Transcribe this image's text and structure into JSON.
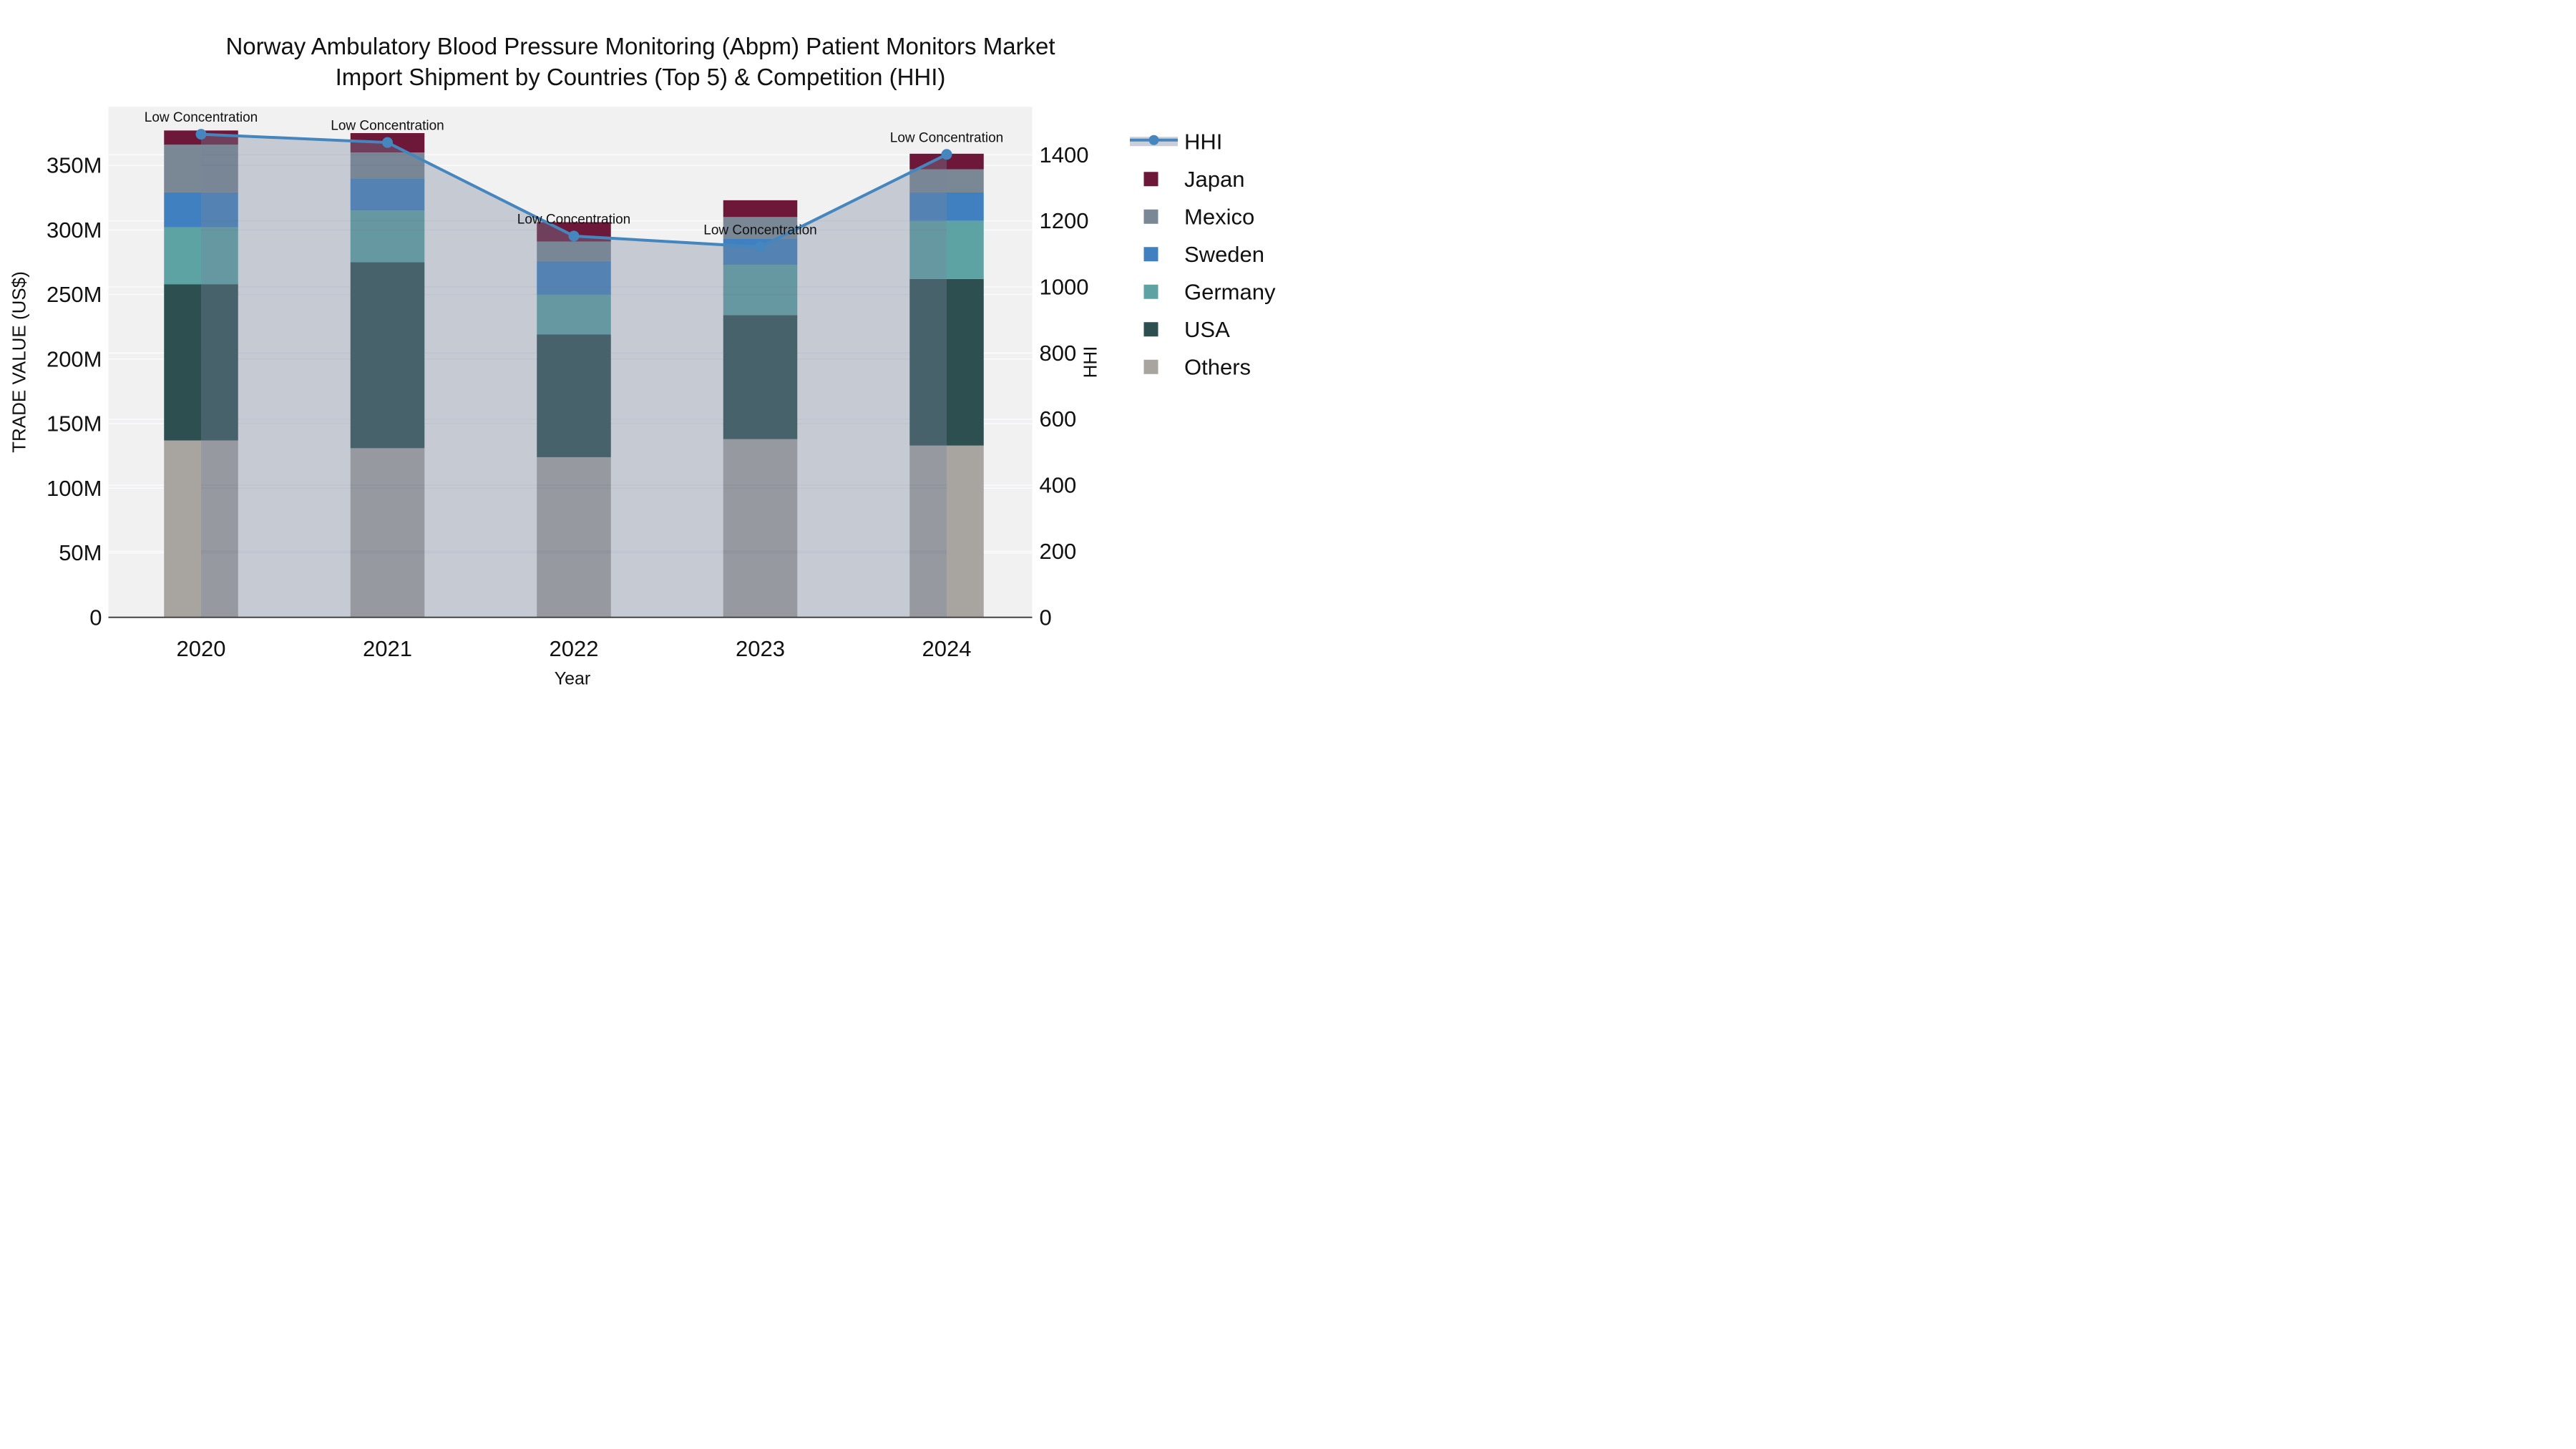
{
  "title": {
    "line1": "Norway Ambulatory Blood Pressure Monitoring (Abpm) Patient Monitors Market",
    "line2": "Import Shipment by Countries (Top 5) & Competition (HHI)"
  },
  "chart_data": {
    "type": "combo-stacked-bar-line",
    "x_axis_title": "Year",
    "y_left_axis_title": "TRADE VALUE (US$)",
    "y_right_axis_title": "HHI",
    "categories": [
      "2020",
      "2021",
      "2022",
      "2023",
      "2024"
    ],
    "bar_unit": "M US$",
    "stack_order_bottom_to_top": [
      "Others",
      "USA",
      "Germany",
      "Sweden",
      "Mexico",
      "Japan"
    ],
    "series": [
      {
        "name": "Japan",
        "color": "#6d1838",
        "values": [
          11,
          15,
          15,
          13,
          12
        ]
      },
      {
        "name": "Mexico",
        "color": "#7a8794",
        "values": [
          37,
          20,
          15,
          17,
          18
        ]
      },
      {
        "name": "Sweden",
        "color": "#4080c0",
        "values": [
          27,
          25,
          26,
          20,
          22
        ]
      },
      {
        "name": "Germany",
        "color": "#5da3a4",
        "values": [
          44,
          40,
          31,
          39,
          45
        ]
      },
      {
        "name": "USA",
        "color": "#2e4f50",
        "values": [
          121,
          144,
          95,
          96,
          129
        ]
      },
      {
        "name": "Others",
        "color": "#a8a5a1",
        "values": [
          137,
          131,
          124,
          138,
          133
        ]
      }
    ],
    "line_series": {
      "name": "HHI",
      "axis": "right",
      "color": "#4486bd",
      "area_fill": "rgba(120,132,155,0.36)",
      "values": [
        1462,
        1437,
        1154,
        1121,
        1401
      ]
    },
    "annotations": [
      {
        "text": "Low Concentration",
        "category": "2020"
      },
      {
        "text": "Low Concentration",
        "category": "2021"
      },
      {
        "text": "Low Concentration",
        "category": "2022"
      },
      {
        "text": "Low Concentration",
        "category": "2023"
      },
      {
        "text": "Low Concentration",
        "category": "2024"
      }
    ],
    "y_left": {
      "tick_labels": [
        "0",
        "50M",
        "100M",
        "150M",
        "200M",
        "250M",
        "300M",
        "350M"
      ],
      "tick_values": [
        0,
        50,
        100,
        150,
        200,
        250,
        300,
        350
      ],
      "range": [
        0,
        393
      ]
    },
    "y_right": {
      "tick_labels": [
        "0",
        "200",
        "400",
        "600",
        "800",
        "1000",
        "1200",
        "1400"
      ],
      "tick_values": [
        0,
        200,
        400,
        600,
        800,
        1000,
        1200,
        1400
      ],
      "range": [
        0,
        1867
      ]
    },
    "grid": true,
    "legend_position": "top-right",
    "legend": [
      {
        "label": "HHI",
        "type": "line",
        "color": "#4486bd",
        "band_color": "#c9ced9"
      },
      {
        "label": "Japan",
        "type": "square",
        "color": "#6d1838"
      },
      {
        "label": "Mexico",
        "type": "square",
        "color": "#7a8794"
      },
      {
        "label": "Sweden",
        "type": "square",
        "color": "#4080c0"
      },
      {
        "label": "Germany",
        "type": "square",
        "color": "#5da3a4"
      },
      {
        "label": "USA",
        "type": "square",
        "color": "#2e4f50"
      },
      {
        "label": "Others",
        "type": "square",
        "color": "#a8a5a1"
      }
    ],
    "colors": {
      "plot_background": "#f1f1f2",
      "page_background": "#ffffff",
      "gridline": "#fbfbfd",
      "axis_line": "#444444",
      "text": "#111111"
    }
  }
}
